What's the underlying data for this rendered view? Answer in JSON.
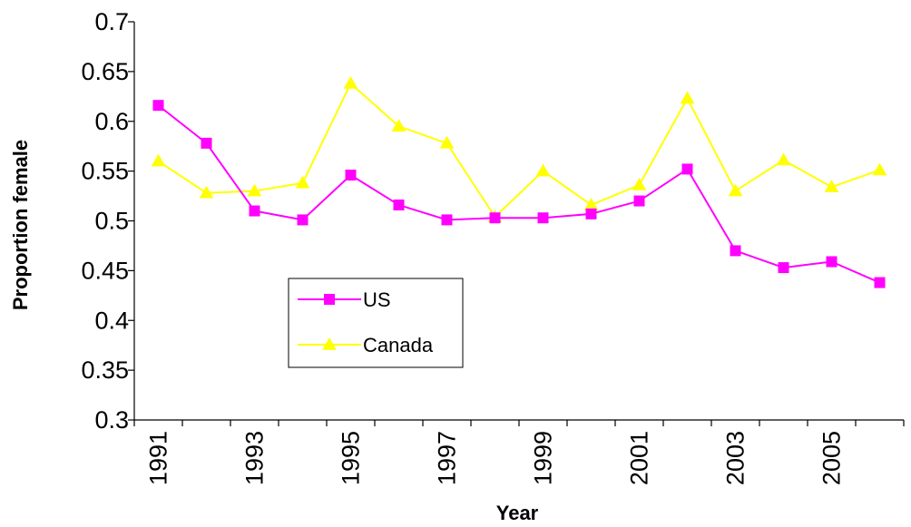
{
  "chart_data": {
    "type": "line",
    "title": "",
    "xlabel": "Year",
    "ylabel": "Proportion female",
    "x": [
      1991,
      1992,
      1993,
      1994,
      1995,
      1996,
      1997,
      1998,
      1999,
      2000,
      2001,
      2002,
      2003,
      2004,
      2005,
      2006
    ],
    "x_tick_labels": [
      "1991",
      "1993",
      "1995",
      "1997",
      "1999",
      "2001",
      "2003",
      "2005"
    ],
    "y_tick_labels": [
      "0.3",
      "0.35",
      "0.4",
      "0.45",
      "0.5",
      "0.55",
      "0.6",
      "0.65",
      "0.7"
    ],
    "ylim": [
      0.3,
      0.7
    ],
    "y_step": 0.05,
    "grid": false,
    "legend_position": "lower-left",
    "series": [
      {
        "name": "US",
        "color": "#ff00ff",
        "marker": "square",
        "values": [
          0.616,
          0.578,
          0.51,
          0.501,
          0.546,
          0.516,
          0.501,
          0.503,
          0.503,
          0.507,
          0.52,
          0.552,
          0.47,
          0.453,
          0.459,
          0.438
        ]
      },
      {
        "name": "Canada",
        "color": "#ffff00",
        "marker": "triangle",
        "values": [
          0.56,
          0.528,
          0.53,
          0.538,
          0.638,
          0.595,
          0.578,
          0.504,
          0.55,
          0.516,
          0.536,
          0.623,
          0.53,
          0.561,
          0.534,
          0.551
        ]
      }
    ]
  }
}
